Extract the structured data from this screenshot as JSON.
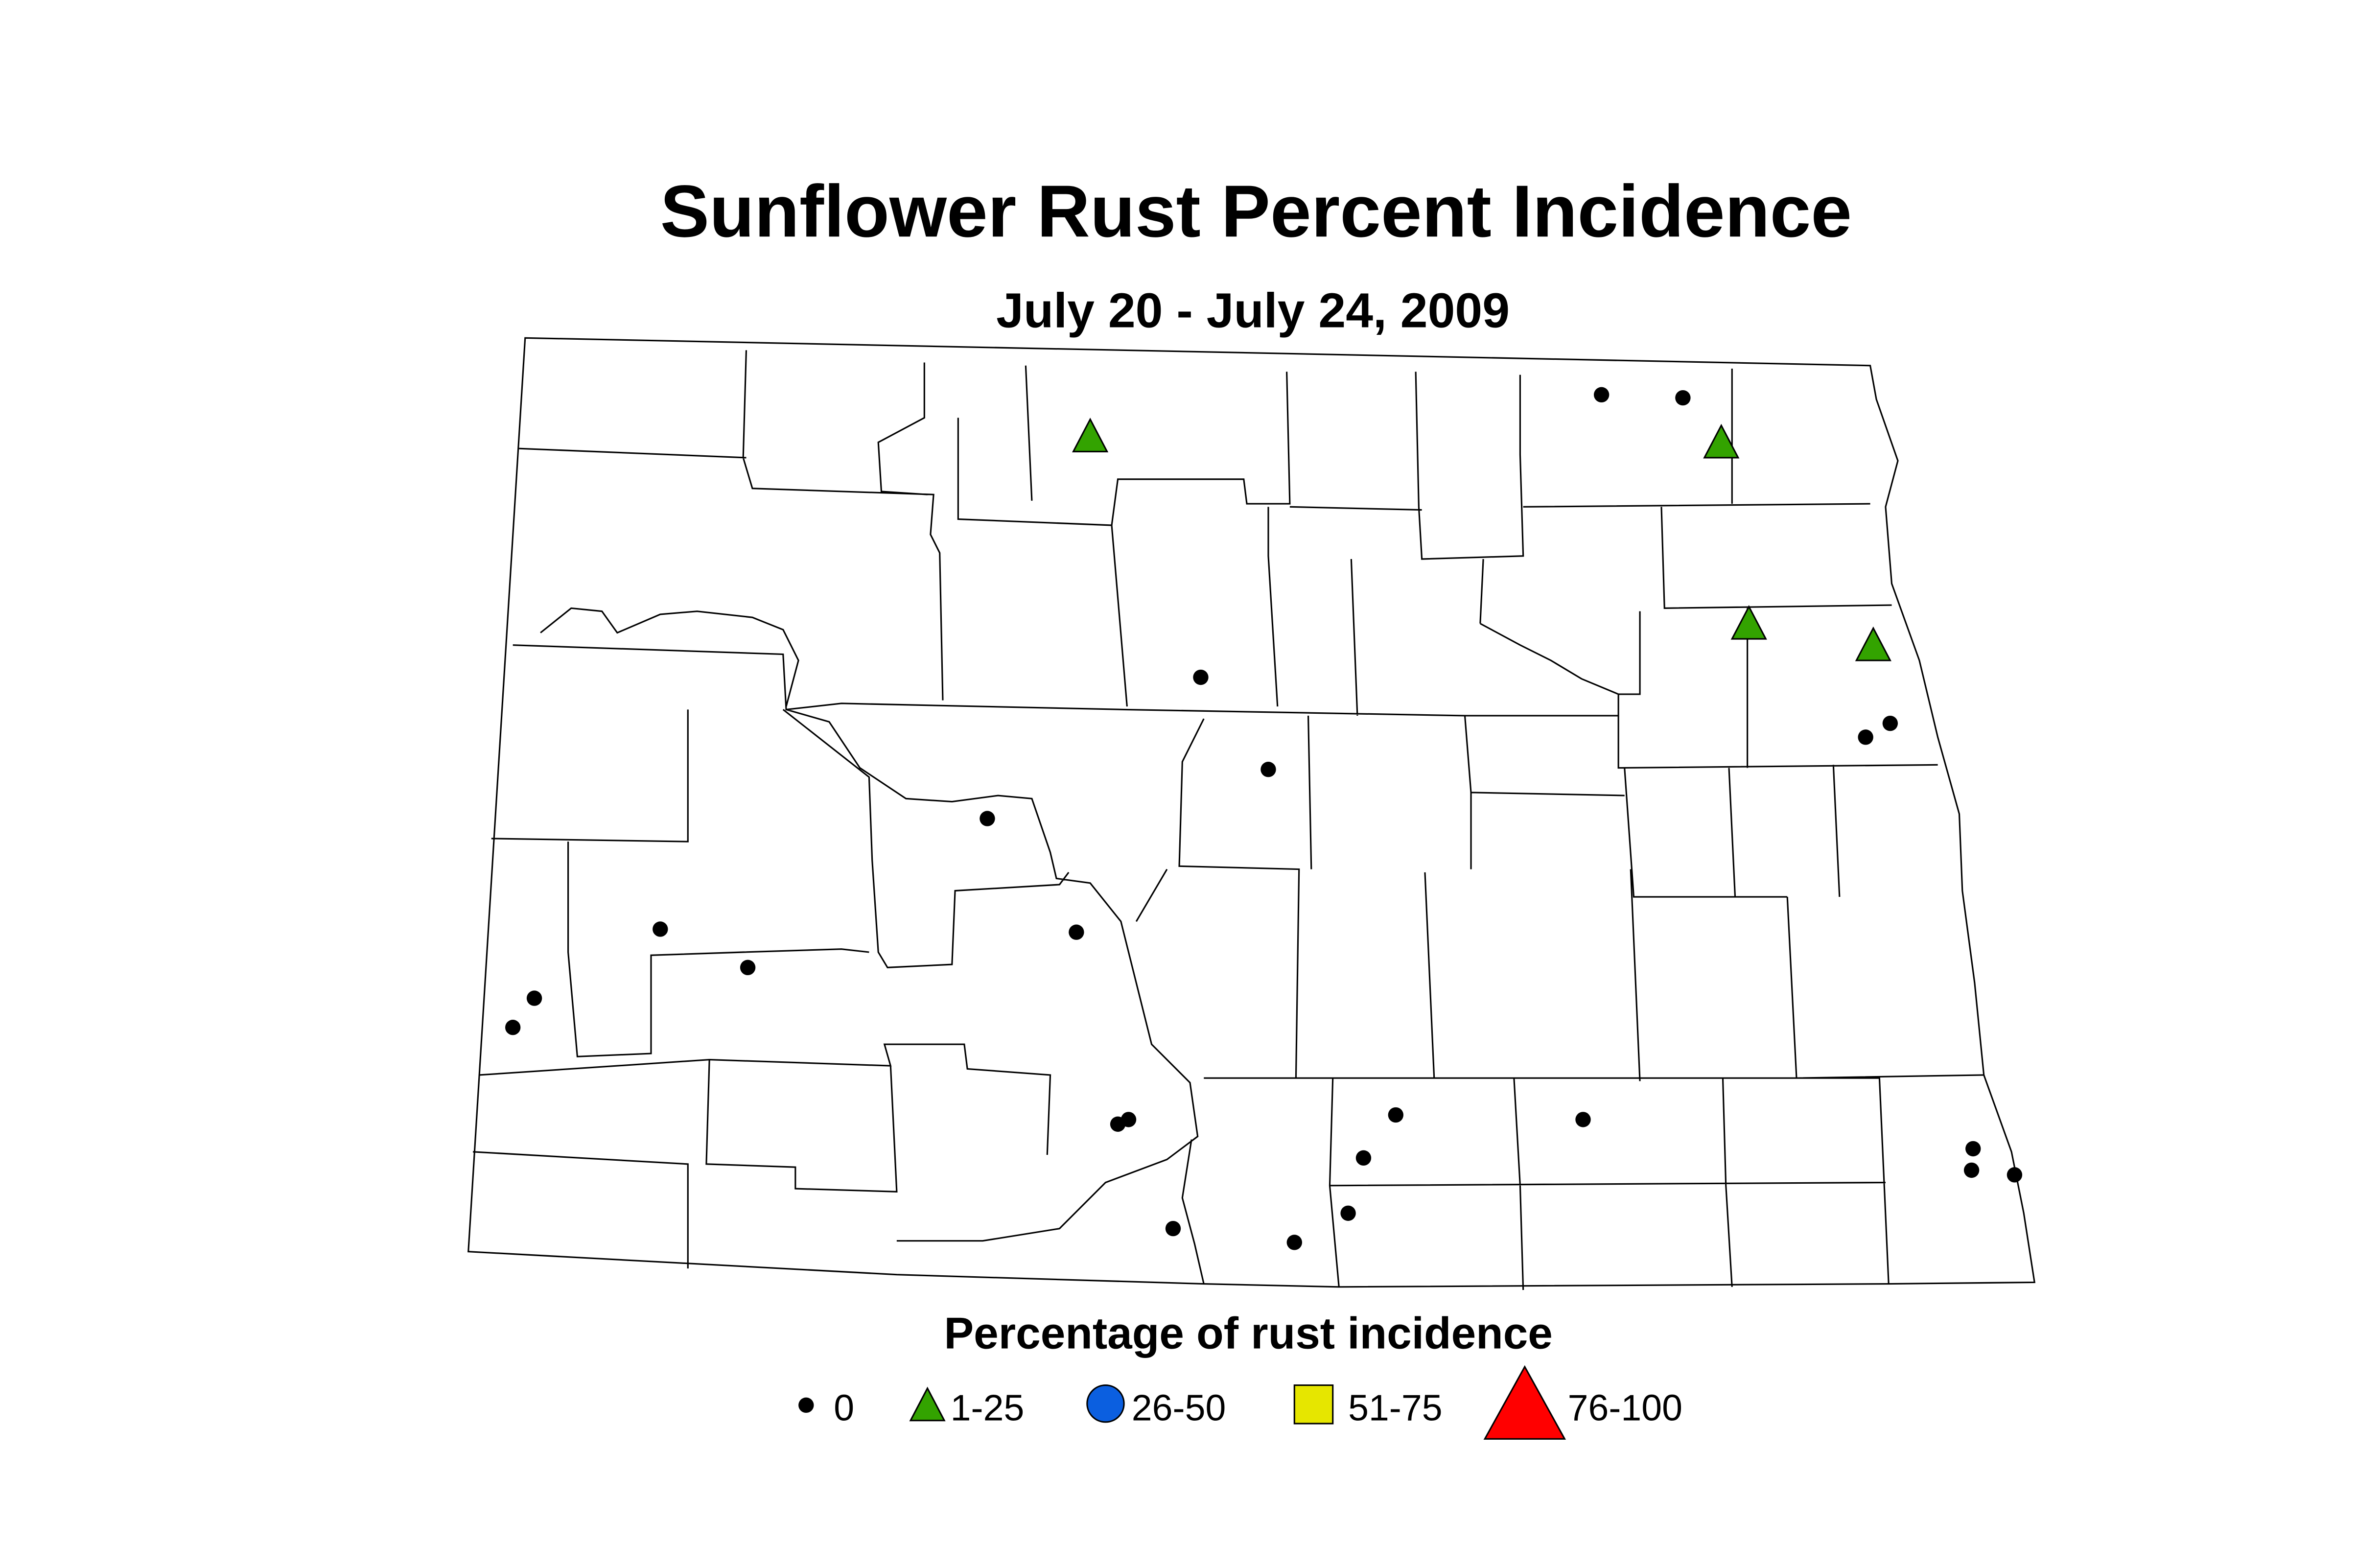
{
  "title": "Sunflower Rust Percent Incidence",
  "subtitle": "July 20 - July 24, 2009",
  "legend": {
    "title": "Percentage of rust incidence",
    "items": [
      {
        "label": "0"
      },
      {
        "label": "1-25"
      },
      {
        "label": "26-50"
      },
      {
        "label": "51-75"
      },
      {
        "label": "76-100"
      }
    ]
  }
}
